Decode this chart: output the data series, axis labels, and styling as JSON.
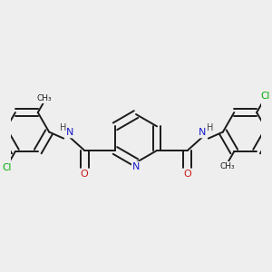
{
  "bg_color": "#eeeeee",
  "bond_color": "#1a1a1a",
  "bond_width": 1.4,
  "dbo": 0.05,
  "atom_colors": {
    "N": "#1a1acc",
    "O": "#cc1a1a",
    "Cl": "#00aa00",
    "C": "#1a1a1a",
    "H": "#444444"
  }
}
